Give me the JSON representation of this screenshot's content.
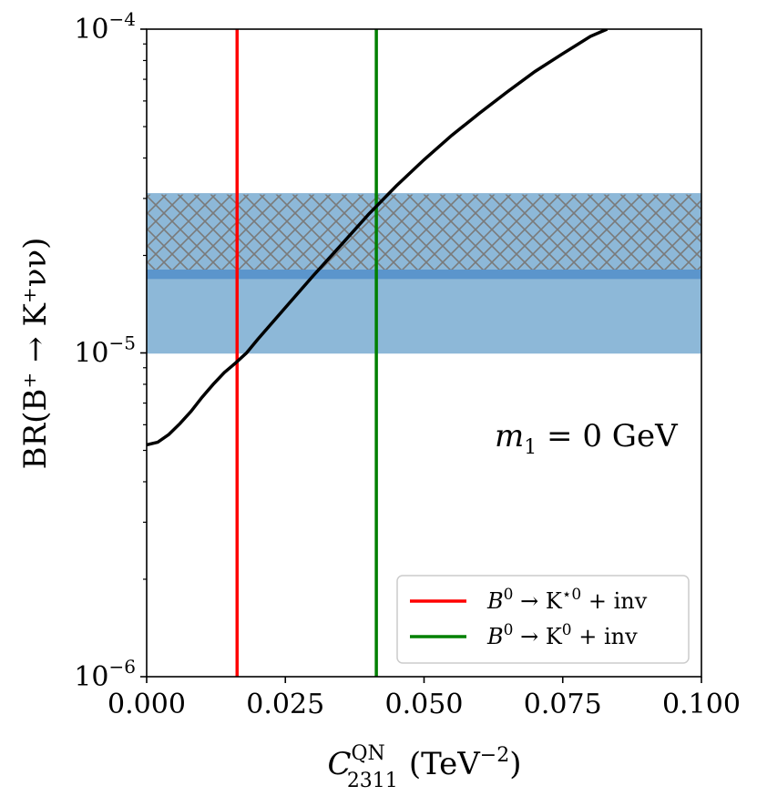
{
  "chart_data": {
    "type": "line",
    "title": "",
    "xlabel": {
      "main": "C",
      "sup": "QN",
      "sub": "2311",
      "unit": "(TeV",
      "unit_sup": "−2",
      "unit_end": ")"
    },
    "ylabel": "BR(B⁺ → K⁺νν)",
    "xlim": [
      0.0,
      0.1
    ],
    "ylim": [
      1e-06,
      0.0001
    ],
    "yscale": "log",
    "grid": false,
    "xticks": [
      {
        "value": 0.0,
        "label": "0.000"
      },
      {
        "value": 0.025,
        "label": "0.025"
      },
      {
        "value": 0.05,
        "label": "0.050"
      },
      {
        "value": 0.075,
        "label": "0.075"
      },
      {
        "value": 0.1,
        "label": "0.100"
      }
    ],
    "yticks": [
      {
        "value": 1e-06,
        "base": "10",
        "exp": "−6"
      },
      {
        "value": 1e-05,
        "base": "10",
        "exp": "−5"
      },
      {
        "value": 0.0001,
        "base": "10",
        "exp": "−4"
      }
    ],
    "curve": {
      "color": "#000000",
      "x": [
        0.0,
        0.002,
        0.004,
        0.006,
        0.008,
        0.01,
        0.012,
        0.014,
        0.016,
        0.018,
        0.02,
        0.025,
        0.03,
        0.035,
        0.04,
        0.045,
        0.05,
        0.055,
        0.06,
        0.065,
        0.07,
        0.075,
        0.08,
        0.083
      ],
      "y": [
        5.2e-06,
        5.3e-06,
        5.6e-06,
        6.05e-06,
        6.6e-06,
        7.3e-06,
        8e-06,
        8.7e-06,
        9.3e-06,
        1e-05,
        1.1e-05,
        1.38e-05,
        1.73e-05,
        2.15e-05,
        2.68e-05,
        3.28e-05,
        3.95e-05,
        4.7e-05,
        5.5e-05,
        6.4e-05,
        7.4e-05,
        8.4e-05,
        9.5e-05,
        0.0001
      ]
    },
    "bands": [
      {
        "type": "solid",
        "ymin": 1e-05,
        "ymax": 1.7e-05,
        "color": "#8db8d8"
      },
      {
        "type": "hatched",
        "ymin": 1.8e-05,
        "ymax": 3.1e-05,
        "color": "#8db8d8",
        "hatch_color": "#7a7a7a"
      },
      {
        "type": "solid",
        "ymin": 1.7e-05,
        "ymax": 1.8e-05,
        "color": "#5b95cc"
      }
    ],
    "vlines": [
      {
        "x": 0.0163,
        "color": "#ff0000"
      },
      {
        "x": 0.0414,
        "color": "#008000"
      }
    ],
    "annotation": {
      "text_main": "m",
      "text_sub": "1",
      "text_rest": " = 0 GeV"
    },
    "legend": {
      "placement": "lower-right",
      "entries": [
        {
          "color": "#ff0000",
          "b": "B",
          "b_sup": "0",
          "arrow": " → K",
          "k_sup": "⋆0",
          "rest": " + inv"
        },
        {
          "color": "#008000",
          "b": "B",
          "b_sup": "0",
          "arrow": " → K",
          "k_sup": "0",
          "rest": " + inv"
        }
      ]
    }
  }
}
